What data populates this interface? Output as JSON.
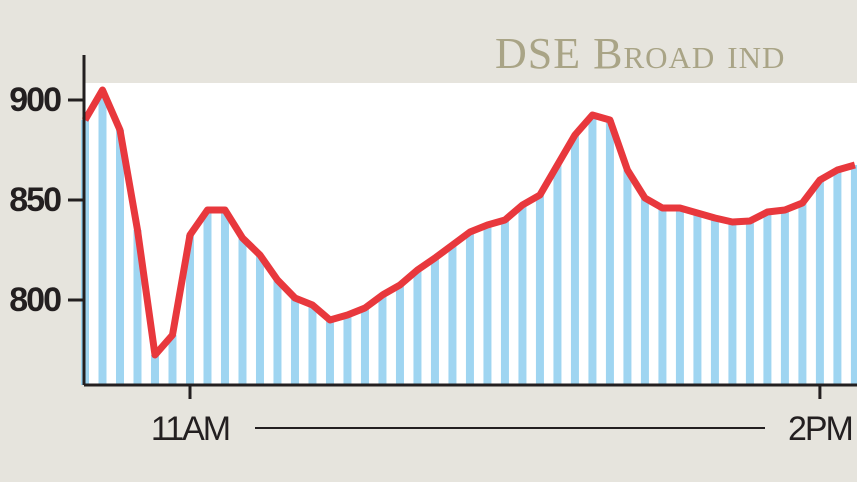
{
  "chart_data": {
    "type": "bar-line",
    "title": "DSE Broad ind",
    "x": [
      630,
      635,
      640,
      645,
      650,
      655,
      660,
      665,
      670,
      675,
      680,
      685,
      690,
      695,
      700,
      705,
      710,
      715,
      720,
      725,
      730,
      735,
      740,
      745,
      750,
      755,
      760,
      765,
      770,
      775,
      780,
      785,
      790,
      795,
      800,
      805,
      810,
      815,
      820,
      825,
      830,
      835,
      840,
      845,
      850
    ],
    "values": [
      890,
      905,
      885,
      835,
      772.5,
      782.5,
      832.5,
      845,
      845,
      831,
      822.5,
      810,
      801,
      797.5,
      790,
      792.5,
      796,
      802.5,
      807.5,
      815,
      821,
      827.5,
      834,
      837.5,
      840,
      847.5,
      852.5,
      867.5,
      882.5,
      892.5,
      890,
      865,
      851,
      846,
      846,
      843.5,
      841,
      839,
      839.5,
      844,
      845,
      848.5,
      860,
      865,
      867.5
    ],
    "bar_color": "#9fd5f1",
    "line_color": "#e8383d",
    "xlim": [
      630,
      850.6
    ],
    "xticks": [
      {
        "value": 660,
        "label": "11AM"
      },
      {
        "value": 840,
        "label": "2PM"
      }
    ],
    "ylim": [
      757.5,
      908.5
    ],
    "yticks": [
      800,
      850,
      900
    ]
  }
}
